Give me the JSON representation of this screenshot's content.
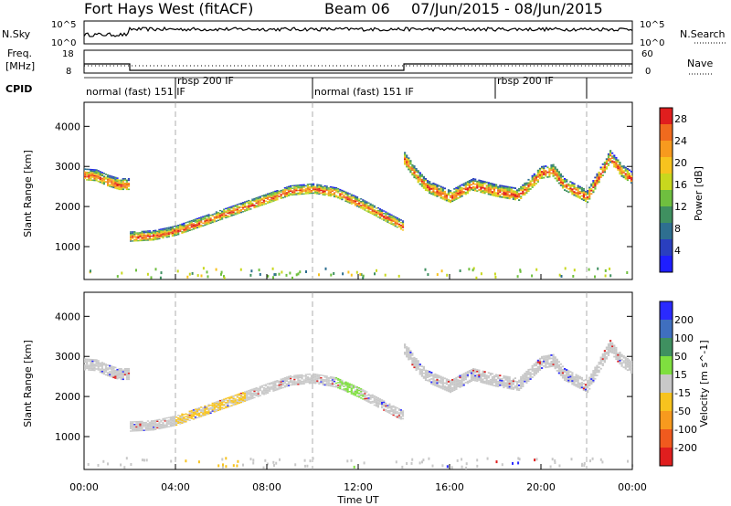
{
  "header": {
    "title": "Fort Hays West (fitACF)",
    "beam": "Beam 06",
    "date_range": "07/Jun/2015 - 08/Jun/2015"
  },
  "nsky_panel": {
    "label": "N.Sky",
    "left_ticks": [
      "10^5",
      "10^0"
    ],
    "right_ticks": [
      "10^5",
      "10^0"
    ],
    "right_label": "N.Search",
    "line_color": "#000000"
  },
  "freq_panel": {
    "label_line1": "Freq.",
    "label_line2": "[MHz]",
    "left_ticks": [
      "18",
      "8"
    ],
    "right_ticks": [
      "60",
      "0"
    ],
    "right_label": "Nave",
    "steps": [
      [
        0,
        12
      ],
      [
        2.0,
        12
      ],
      [
        2.0,
        9.2
      ],
      [
        14.0,
        9.2
      ],
      [
        14.0,
        12
      ],
      [
        24.0,
        12
      ]
    ],
    "yrange": [
      8,
      18
    ]
  },
  "cpid": {
    "label": "CPID",
    "segments": [
      {
        "start": 0,
        "end": 4.0,
        "text": "normal (fast) 151 IF"
      },
      {
        "start": 4.0,
        "end": 10.0,
        "text": "rbsp 200 IF"
      },
      {
        "start": 10.0,
        "end": 18.0,
        "text": "normal (fast) 151 IF"
      },
      {
        "start": 18.0,
        "end": 22.0,
        "text": "rbsp 200 IF"
      }
    ]
  },
  "chart_data": [
    {
      "type": "heatmap",
      "name": "power",
      "ylabel": "Slant Range [km]",
      "xlabel": "Time UT",
      "xlim": [
        0,
        24
      ],
      "ylim": [
        180,
        4600
      ],
      "xticks": [
        0,
        4,
        8,
        12,
        16,
        20,
        24
      ],
      "xtick_labels": [
        "00:00",
        "04:00",
        "08:00",
        "12:00",
        "16:00",
        "20:00",
        "00:00"
      ],
      "yticks": [
        1000,
        2000,
        3000,
        4000
      ],
      "colorbar": {
        "label": "Power [dB]",
        "ticks": [
          4,
          8,
          12,
          16,
          20,
          24,
          28
        ],
        "range": [
          0,
          30
        ],
        "colors": [
          "#1e1eff",
          "#2a3fbf",
          "#2e6f90",
          "#3f9060",
          "#6fbf3f",
          "#c8d81e",
          "#f7c31e",
          "#f79a1e",
          "#f06a1e",
          "#e01e1e"
        ]
      },
      "bands": [
        {
          "x": [
            0.0,
            0.5,
            1.0,
            1.5,
            2.0
          ],
          "y": [
            2800,
            2780,
            2650,
            2560,
            2560
          ],
          "width": 300
        },
        {
          "x": [
            2.0,
            3.0,
            4.0,
            5.0,
            6.0,
            7.0,
            8.0,
            9.0,
            10.0,
            11.0,
            12.0,
            13.0,
            14.0
          ],
          "y": [
            1250,
            1280,
            1400,
            1600,
            1800,
            2000,
            2200,
            2400,
            2450,
            2350,
            2100,
            1800,
            1500
          ],
          "width": 260
        },
        {
          "x": [
            14.0,
            14.5,
            15.0,
            16.0,
            17.0,
            18.0,
            19.0,
            20.0,
            20.5,
            21.0,
            22.0,
            22.5,
            23.0,
            23.5,
            24.0
          ],
          "y": [
            3200,
            2800,
            2500,
            2250,
            2550,
            2400,
            2300,
            2850,
            2900,
            2550,
            2250,
            2750,
            3250,
            2900,
            2700
          ],
          "width": 320
        }
      ]
    },
    {
      "type": "heatmap",
      "name": "velocity",
      "ylabel": "Slant Range [km]",
      "xlabel": "Time UT",
      "xlim": [
        0,
        24
      ],
      "ylim": [
        180,
        4600
      ],
      "xticks": [
        0,
        4,
        8,
        12,
        16,
        20,
        24
      ],
      "xtick_labels": [
        "00:00",
        "04:00",
        "08:00",
        "12:00",
        "16:00",
        "20:00",
        "00:00"
      ],
      "yticks": [
        1000,
        2000,
        3000,
        4000
      ],
      "colorbar": {
        "label": "Velocity [m s^-1]",
        "ticks": [
          "200",
          "100",
          "50",
          "15",
          "-15",
          "-50",
          "-100",
          "-200"
        ],
        "colors": [
          "#2a2aff",
          "#3f6fbf",
          "#3f9060",
          "#7fdf3f",
          "#c8c8c8",
          "#f7c31e",
          "#f79a1e",
          "#f05a1e",
          "#e01e1e"
        ]
      },
      "bands": [
        {
          "x": [
            0.0,
            0.5,
            1.0,
            1.5,
            2.0
          ],
          "y": [
            2800,
            2780,
            2650,
            2560,
            2560
          ],
          "width": 300
        },
        {
          "x": [
            2.0,
            3.0,
            4.0,
            5.0,
            6.0,
            7.0,
            8.0,
            9.0,
            10.0,
            11.0,
            12.0,
            13.0,
            14.0
          ],
          "y": [
            1250,
            1280,
            1400,
            1600,
            1800,
            2000,
            2200,
            2400,
            2450,
            2350,
            2100,
            1800,
            1500
          ],
          "width": 260
        },
        {
          "x": [
            14.0,
            14.5,
            15.0,
            16.0,
            17.0,
            18.0,
            19.0,
            20.0,
            20.5,
            21.0,
            22.0,
            22.5,
            23.0,
            23.5,
            24.0
          ],
          "y": [
            3200,
            2800,
            2500,
            2250,
            2550,
            2400,
            2300,
            2850,
            2900,
            2550,
            2250,
            2750,
            3250,
            2900,
            2700
          ],
          "width": 320
        }
      ],
      "dominant_color": "#c8c8c8",
      "highlight_regions": [
        {
          "x": [
            4.0,
            7.0
          ],
          "color": "#f7c31e"
        },
        {
          "x": [
            11.0,
            12.2
          ],
          "color": "#7fdf3f"
        }
      ]
    }
  ],
  "time_axis": {
    "label": "Time UT"
  }
}
